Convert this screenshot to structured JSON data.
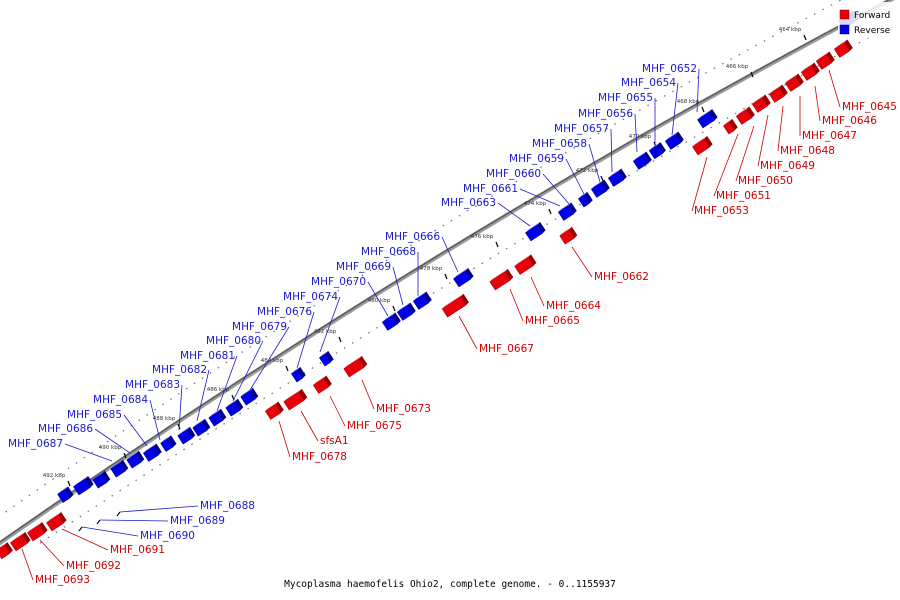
{
  "colors": {
    "forward": "#e8000b",
    "reverse": "#0000e6",
    "forward_label": "#cc0000",
    "reverse_label": "#1a1acc"
  },
  "legend": [
    {
      "label": "Forward",
      "strand": "forward"
    },
    {
      "label": "Reverse",
      "strand": "reverse"
    }
  ],
  "caption": "Mycoplasma haemofelis Ohio2, complete genome. - 0..1155937",
  "ticks": [
    "464 kbp",
    "466 kbp",
    "468 kbp",
    "470 kbp",
    "472 kbp",
    "474 kbp",
    "476 kbp",
    "478 kbp",
    "480 kbp",
    "482 kbp",
    "484 kbp",
    "486 kbp",
    "488 kbp",
    "490 kbp",
    "492 kbp"
  ],
  "genes_forward": [
    "MHF_0645",
    "MHF_0646",
    "MHF_0647",
    "MHF_0648",
    "MHF_0649",
    "MHF_0650",
    "MHF_0651",
    "MHF_0653",
    "MHF_0662",
    "MHF_0664",
    "MHF_0665",
    "MHF_0667",
    "MHF_0673",
    "MHF_0675",
    "sfsA1",
    "MHF_0678",
    "MHF_0691",
    "MHF_0692",
    "MHF_0693"
  ],
  "genes_reverse": [
    "MHF_0652",
    "MHF_0654",
    "MHF_0655",
    "MHF_0656",
    "MHF_0657",
    "MHF_0658",
    "MHF_0659",
    "MHF_0660",
    "MHF_0661",
    "MHF_0663",
    "MHF_0666",
    "MHF_0668",
    "MHF_0669",
    "MHF_0670",
    "MHF_0674",
    "MHF_0676",
    "MHF_0679",
    "MHF_0680",
    "MHF_0681",
    "MHF_0682",
    "MHF_0683",
    "MHF_0684",
    "MHF_0685",
    "MHF_0686",
    "MHF_0687",
    "MHF_0688",
    "MHF_0689",
    "MHF_0690"
  ]
}
